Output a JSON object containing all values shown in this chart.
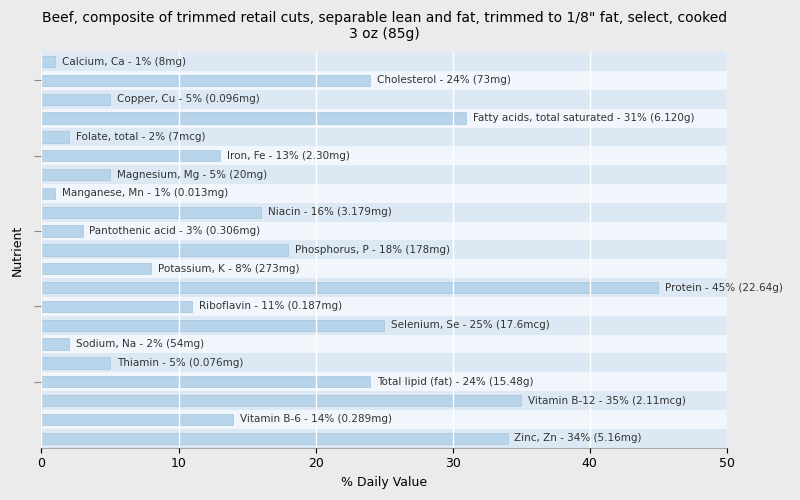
{
  "title": "Beef, composite of trimmed retail cuts, separable lean and fat, trimmed to 1/8\" fat, select, cooked\n3 oz (85g)",
  "xlabel": "% Daily Value",
  "ylabel": "Nutrient",
  "xlim": [
    0,
    50
  ],
  "xticks": [
    0,
    10,
    20,
    30,
    40,
    50
  ],
  "fig_bg_color": "#ebebeb",
  "plot_bg_color": "#ffffff",
  "bar_color": "#b8d4ea",
  "bar_edge_color": "#9abcd4",
  "row_alt_color": "#dce9f5",
  "row_base_color": "#f0f6fc",
  "text_color": "#333333",
  "nutrients": [
    {
      "label": "Calcium, Ca - 1% (8mg)",
      "value": 1
    },
    {
      "label": "Cholesterol - 24% (73mg)",
      "value": 24
    },
    {
      "label": "Copper, Cu - 5% (0.096mg)",
      "value": 5
    },
    {
      "label": "Fatty acids, total saturated - 31% (6.120g)",
      "value": 31
    },
    {
      "label": "Folate, total - 2% (7mcg)",
      "value": 2
    },
    {
      "label": "Iron, Fe - 13% (2.30mg)",
      "value": 13
    },
    {
      "label": "Magnesium, Mg - 5% (20mg)",
      "value": 5
    },
    {
      "label": "Manganese, Mn - 1% (0.013mg)",
      "value": 1
    },
    {
      "label": "Niacin - 16% (3.179mg)",
      "value": 16
    },
    {
      "label": "Pantothenic acid - 3% (0.306mg)",
      "value": 3
    },
    {
      "label": "Phosphorus, P - 18% (178mg)",
      "value": 18
    },
    {
      "label": "Potassium, K - 8% (273mg)",
      "value": 8
    },
    {
      "label": "Protein - 45% (22.64g)",
      "value": 45
    },
    {
      "label": "Riboflavin - 11% (0.187mg)",
      "value": 11
    },
    {
      "label": "Selenium, Se - 25% (17.6mcg)",
      "value": 25
    },
    {
      "label": "Sodium, Na - 2% (54mg)",
      "value": 2
    },
    {
      "label": "Thiamin - 5% (0.076mg)",
      "value": 5
    },
    {
      "label": "Total lipid (fat) - 24% (15.48g)",
      "value": 24
    },
    {
      "label": "Vitamin B-12 - 35% (2.11mcg)",
      "value": 35
    },
    {
      "label": "Vitamin B-6 - 14% (0.289mg)",
      "value": 14
    },
    {
      "label": "Zinc, Zn - 34% (5.16mg)",
      "value": 34
    }
  ],
  "title_fontsize": 10,
  "axis_label_fontsize": 9,
  "tick_fontsize": 9,
  "bar_label_fontsize": 7.5,
  "ytick_positions": [
    3,
    7,
    11,
    15,
    19
  ]
}
